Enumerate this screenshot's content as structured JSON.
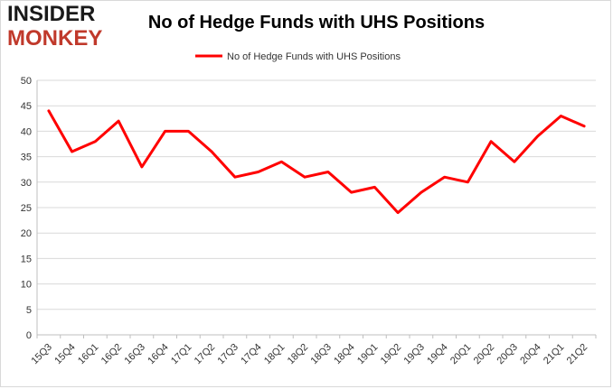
{
  "logo": {
    "line1": "INSIDER",
    "line2": "MONKEY"
  },
  "chart_data": {
    "type": "line",
    "title": "No of Hedge Funds with UHS Positions",
    "xlabel": "",
    "ylabel": "",
    "ylim": [
      0,
      50
    ],
    "yticks": [
      0,
      5,
      10,
      15,
      20,
      25,
      30,
      35,
      40,
      45,
      50
    ],
    "grid": true,
    "legend": "top-center",
    "categories": [
      "15Q3",
      "15Q4",
      "16Q1",
      "16Q2",
      "16Q3",
      "16Q4",
      "17Q1",
      "17Q2",
      "17Q3",
      "17Q4",
      "18Q1",
      "18Q2",
      "18Q3",
      "18Q4",
      "19Q1",
      "19Q2",
      "19Q3",
      "19Q4",
      "20Q1",
      "20Q2",
      "20Q3",
      "20Q4",
      "21Q1",
      "21Q2"
    ],
    "series": [
      {
        "name": "No of Hedge Funds with UHS Positions",
        "color": "#ff0000",
        "values": [
          44,
          36,
          38,
          42,
          33,
          40,
          40,
          36,
          31,
          32,
          34,
          31,
          32,
          28,
          29,
          24,
          28,
          31,
          30,
          38,
          34,
          39,
          43,
          41
        ]
      }
    ]
  }
}
